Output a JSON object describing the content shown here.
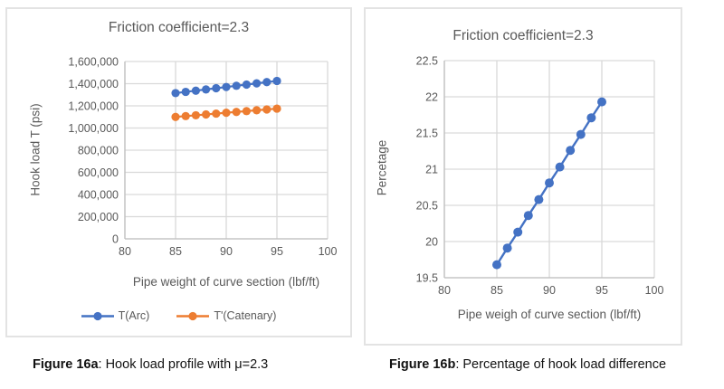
{
  "colors": {
    "blue": "#4472C4",
    "orange": "#ED7D31",
    "grid": "#D9D9D9",
    "axis_line": "#BFBFBF",
    "axis_text": "#595959"
  },
  "captions": [
    {
      "label": "Figure 16a",
      "text": ": Hook load profile with μ=2.3"
    },
    {
      "label": "Figure 16b",
      "text": ": Percentage of hook load difference"
    }
  ],
  "chart_data": [
    {
      "type": "line",
      "title": "Friction coefficient=2.3",
      "xlabel": "Pipe weight of curve section (lbf/ft)",
      "ylabel": "Hook load T (psi)",
      "xlim": [
        80,
        100
      ],
      "ylim": [
        0,
        1600000
      ],
      "x_ticks": [
        80,
        85,
        90,
        95,
        100
      ],
      "y_ticks": [
        0,
        200000,
        400000,
        600000,
        800000,
        1000000,
        1200000,
        1400000,
        1600000
      ],
      "grid": true,
      "legend_position": "bottom",
      "x": [
        85,
        86,
        87,
        88,
        89,
        90,
        91,
        92,
        93,
        94,
        95
      ],
      "series": [
        {
          "name": "T(Arc)",
          "color": "#4472C4",
          "values": [
            1315000,
            1326000,
            1337000,
            1348000,
            1359000,
            1370000,
            1381000,
            1392000,
            1403000,
            1414000,
            1425000
          ]
        },
        {
          "name": "T'(Catenary)",
          "color": "#ED7D31",
          "values": [
            1100000,
            1107500,
            1115000,
            1122500,
            1130000,
            1137500,
            1145000,
            1152500,
            1160000,
            1167500,
            1175000
          ]
        }
      ]
    },
    {
      "type": "line",
      "title": "Friction coefficient=2.3",
      "xlabel": "Pipe weigh of curve section (lbf/ft)",
      "ylabel": "Percetage",
      "xlim": [
        80,
        100
      ],
      "ylim": [
        19.5,
        22.5
      ],
      "x_ticks": [
        80,
        85,
        90,
        95,
        100
      ],
      "y_ticks": [
        19.5,
        20,
        20.5,
        21,
        21.5,
        22,
        22.5
      ],
      "grid": true,
      "legend_position": "none",
      "x": [
        85,
        86,
        87,
        88,
        89,
        90,
        91,
        92,
        93,
        94,
        95
      ],
      "series": [
        {
          "name": "Percentage",
          "color": "#4472C4",
          "values": [
            19.68,
            19.91,
            20.13,
            20.36,
            20.58,
            20.81,
            21.03,
            21.26,
            21.48,
            21.71,
            21.93
          ]
        }
      ]
    }
  ]
}
